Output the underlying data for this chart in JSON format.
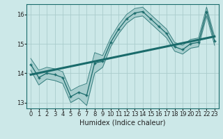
{
  "xlabel": "Humidex (Indice chaleur)",
  "bg_color": "#cce8e8",
  "grid_color": "#aacccc",
  "line_color": "#1a6b6b",
  "x_values": [
    0,
    1,
    2,
    3,
    4,
    5,
    6,
    7,
    8,
    9,
    10,
    11,
    12,
    13,
    14,
    15,
    16,
    17,
    18,
    19,
    20,
    21,
    22,
    23
  ],
  "y_main": [
    14.3,
    13.85,
    14.0,
    13.95,
    13.85,
    13.2,
    13.35,
    13.25,
    14.35,
    14.4,
    15.05,
    15.5,
    15.85,
    16.05,
    16.1,
    15.85,
    15.6,
    15.35,
    14.9,
    14.8,
    15.0,
    15.05,
    16.1,
    15.1
  ],
  "y_upper": [
    14.5,
    14.1,
    14.2,
    14.15,
    14.05,
    13.4,
    13.55,
    13.65,
    14.7,
    14.6,
    15.2,
    15.65,
    16.0,
    16.2,
    16.25,
    16.0,
    15.75,
    15.5,
    15.05,
    14.95,
    15.15,
    15.2,
    16.25,
    15.25
  ],
  "y_lower": [
    14.1,
    13.6,
    13.8,
    13.75,
    13.65,
    13.0,
    13.15,
    12.9,
    14.0,
    14.2,
    14.9,
    15.35,
    15.7,
    15.9,
    15.95,
    15.7,
    15.45,
    15.2,
    14.75,
    14.65,
    14.85,
    14.9,
    15.95,
    14.95
  ],
  "trend_x": [
    0,
    23
  ],
  "trend_y": [
    13.95,
    15.25
  ],
  "ylim": [
    12.8,
    16.35
  ],
  "xlim": [
    -0.5,
    23.5
  ],
  "yticks": [
    13,
    14,
    15,
    16
  ],
  "xticks": [
    0,
    1,
    2,
    3,
    4,
    5,
    6,
    7,
    8,
    9,
    10,
    11,
    12,
    13,
    14,
    15,
    16,
    17,
    18,
    19,
    20,
    21,
    22,
    23
  ],
  "xtick_labels": [
    "0",
    "1",
    "2",
    "3",
    "4",
    "5",
    "6",
    "7",
    "8",
    "9",
    "10",
    "11",
    "12",
    "13",
    "14",
    "15",
    "16",
    "17",
    "18",
    "19",
    "20",
    "21",
    "22",
    "23"
  ],
  "fontsize_xlabel": 7,
  "fontsize_ticks": 6
}
